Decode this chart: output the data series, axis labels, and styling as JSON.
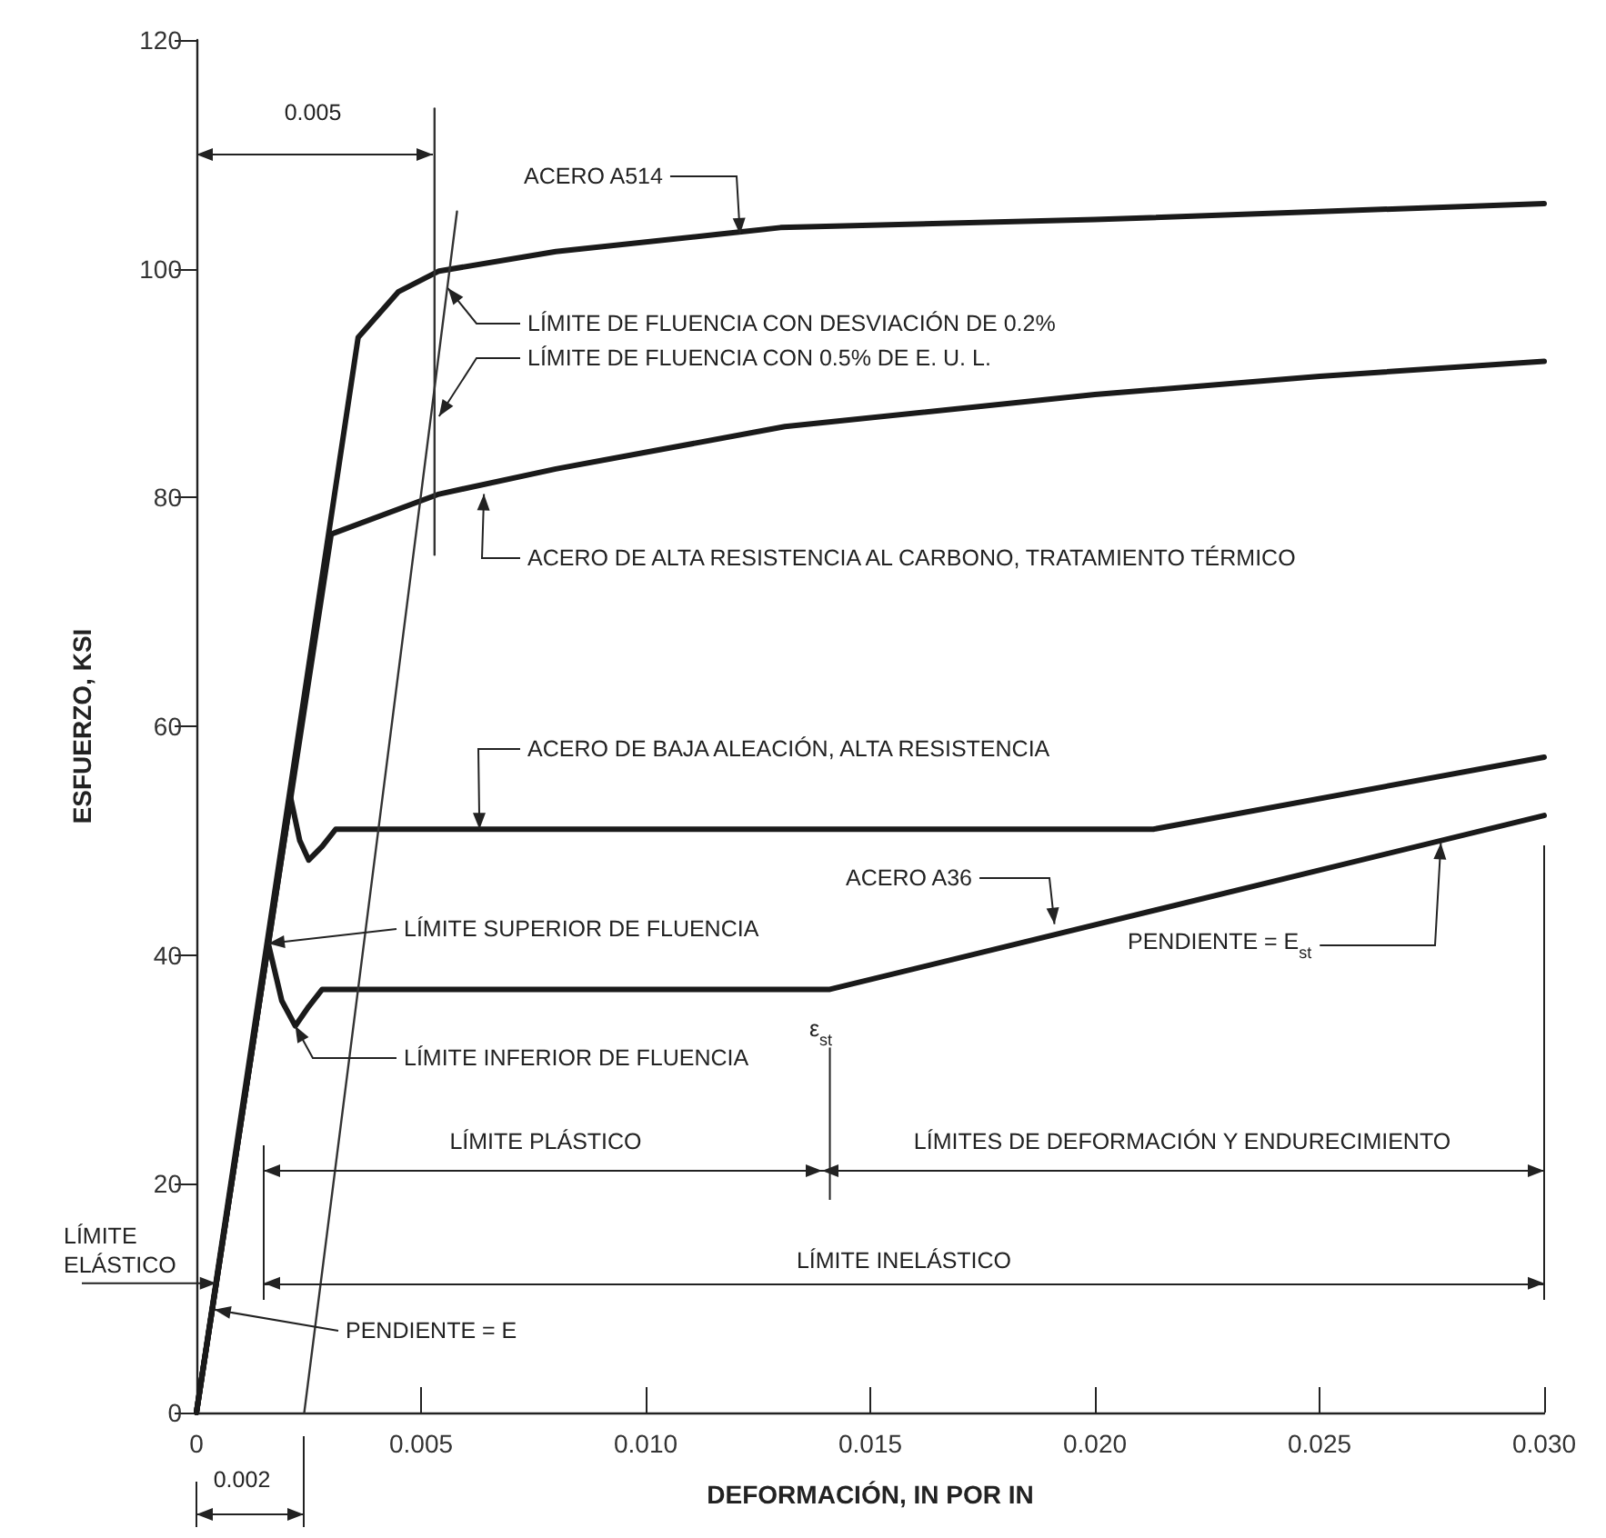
{
  "chart_data": {
    "type": "line",
    "xlabel": "DEFORMACIÓN, IN POR IN",
    "ylabel": "ESFUERZO, KSI",
    "xlim": [
      0,
      0.03
    ],
    "xticks": [
      0,
      0.005,
      {
        "value": 0.01,
        "label": "0.010"
      },
      0.015,
      {
        "value": 0.02,
        "label": "0.020"
      },
      0.025,
      {
        "value": 0.03,
        "label": "0.030"
      }
    ],
    "ref_lines": [
      {
        "axis": "y",
        "value": 11.3,
        "label": "LÍMITE INELÁSTICO"
      }
    ],
    "ylim": [
      0,
      120
    ],
    "yticks": [
      0,
      20,
      40,
      60,
      80,
      100,
      120
    ],
    "marker": "none",
    "line_style": "solid",
    "series": [
      {
        "color": "#1a1a1a",
        "x": [
          0,
          0.0036,
          0.0045,
          0.0054,
          0.008,
          0.013,
          0.02,
          0.025,
          0.03
        ],
        "values": [
          0,
          94,
          98,
          99.8,
          101.5,
          103.6,
          104.3,
          105,
          105.7
        ]
      },
      {
        "color": "#1a1a1a",
        "x": [
          0,
          0.003,
          0.0054,
          0.008,
          0.0131,
          0.02,
          0.025,
          0.03
        ],
        "values": [
          0,
          76.8,
          80.3,
          82.5,
          86.2,
          89,
          90.6,
          91.9
        ]
      },
      {
        "color": "#1a1a1a",
        "x": [
          0,
          0.0021,
          0.0023,
          0.0025,
          0.0028,
          0.0031,
          0.0213,
          0.03
        ],
        "values": [
          0,
          53.7,
          50,
          48.3,
          49.5,
          51,
          51,
          57.3
        ]
      },
      {
        "color": "#1a1a1a",
        "x": [
          0,
          0.0016,
          0.0019,
          0.0022,
          0.0025,
          0.0028,
          0.0141,
          0.03
        ],
        "values": [
          0,
          41,
          36,
          33.8,
          35.5,
          37,
          37,
          52.2
        ]
      },
      {
        "color": "#333333",
        "x": [
          0.0024,
          0.0058
        ],
        "values": [
          0,
          105
        ]
      },
      {
        "color": "#333333",
        "x": [
          0.0053,
          0.0053
        ],
        "values": [
          75,
          114
        ]
      }
    ],
    "annotations": [
      "0.005",
      {
        "text": "ACERO A514",
        "x": 0.0121,
        "y": 103
      },
      {
        "text": "LÍMITE DE FLUENCIA CON DESVIACIÓN DE 0.2%",
        "x": 0.0056,
        "y": 98.3
      },
      {
        "text": "LÍMITE DE FLUENCIA CON 0.5% DE E. U. L.",
        "x": 0.0054,
        "y": 87.1
      },
      {
        "text": "ACERO DE ALTA RESISTENCIA AL CARBONO, TRATAMIENTO TÉRMICO",
        "x": 0.0064,
        "y": 80.3
      },
      {
        "text": "ACERO DE BAJA ALEACIÓN, ALTA RESISTENCIA",
        "x": 0.0063,
        "y": 51
      },
      {
        "text": "LÍMITE SUPERIOR DE FLUENCIA",
        "x": 0.0016,
        "y": 41
      },
      {
        "text": "LÍMITE INFERIOR DE FLUENCIA",
        "x": 0.0022,
        "y": 33.8
      },
      {
        "text": "ε$_{st}$",
        "x": 0.0141,
        "y": 37
      },
      {
        "text": "ACERO A36",
        "x": 0.0191,
        "y": 42.7
      },
      {
        "text": "PENDIENTE = E$_{st}$",
        "x": 0.0277,
        "y": 49.8
      },
      "LÍMITE PLÁSTICO",
      "LÍMITES DE DEFORMACIÓN Y ENDURECIMIENTO",
      {
        "text": "LÍMITE ELÁSTICO",
        "x": 0.00044,
        "y": 11.3
      },
      {
        "text": "PENDIENTE = E",
        "x": 0.0004,
        "y": 9
      },
      "0.002"
    ]
  }
}
